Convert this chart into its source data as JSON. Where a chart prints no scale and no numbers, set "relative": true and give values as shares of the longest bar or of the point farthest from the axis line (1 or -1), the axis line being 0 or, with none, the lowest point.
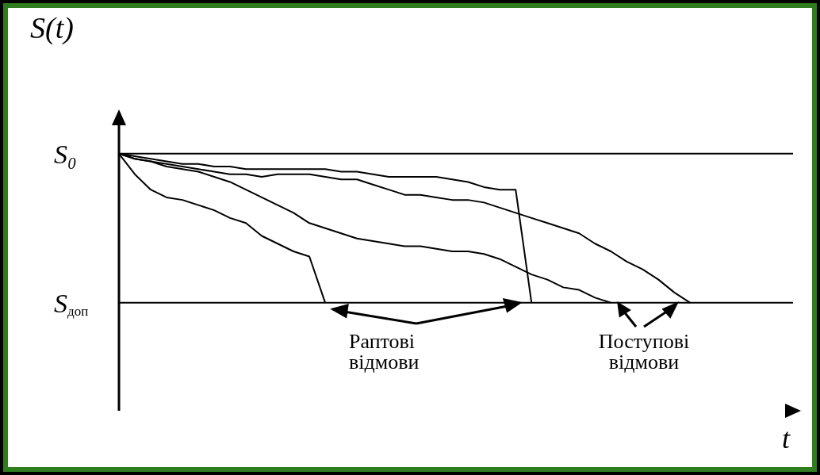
{
  "chart_data": {
    "type": "line",
    "relative": true,
    "xlabel": "t",
    "ylabel": "S(t)",
    "categories": [
      null,
      null,
      null,
      null,
      null,
      null,
      null,
      null,
      null,
      null,
      null,
      null,
      null,
      null,
      null,
      null,
      null,
      null,
      null,
      null,
      null,
      null,
      null,
      null,
      null,
      null,
      null,
      null,
      null,
      null,
      null,
      null,
      null,
      null,
      null,
      null,
      null
    ],
    "series": [
      {
        "color": "#000000",
        "values": [
          1,
          0.92,
          0.86,
          0.83,
          0.82,
          0.8,
          0.78,
          0.75,
          0.73,
          0.68,
          0.65,
          0.62,
          0.6,
          0.42,
          null,
          null,
          null,
          null,
          null,
          null,
          null,
          null,
          null,
          null,
          null,
          null,
          null,
          null,
          null,
          null,
          null,
          null,
          null,
          null,
          null,
          null,
          null
        ]
      },
      {
        "color": "#000000",
        "values": [
          1,
          0.98,
          0.97,
          0.95,
          0.94,
          0.93,
          0.91,
          0.89,
          0.86,
          0.83,
          0.8,
          0.77,
          0.73,
          0.71,
          0.69,
          0.67,
          0.66,
          0.65,
          0.64,
          0.64,
          0.63,
          0.62,
          0.62,
          0.61,
          0.59,
          0.56,
          0.53,
          0.51,
          0.48,
          0.47,
          0.44,
          0.42,
          null,
          null,
          null,
          null,
          null
        ]
      },
      {
        "color": "#000000",
        "values": [
          1,
          0.99,
          0.98,
          0.97,
          0.96,
          0.96,
          0.95,
          0.95,
          0.94,
          0.94,
          0.94,
          0.94,
          0.94,
          0.94,
          0.93,
          0.93,
          0.92,
          0.91,
          0.91,
          0.91,
          0.91,
          0.9,
          0.89,
          0.87,
          0.86,
          0.86,
          0.42,
          null,
          null,
          null,
          null,
          null,
          null,
          null,
          null,
          null,
          null
        ]
      },
      {
        "color": "#000000",
        "values": [
          1,
          0.98,
          0.97,
          0.96,
          0.95,
          0.94,
          0.93,
          0.92,
          0.92,
          0.91,
          0.92,
          0.92,
          0.92,
          0.91,
          0.9,
          0.9,
          0.88,
          0.86,
          0.84,
          0.84,
          0.83,
          0.82,
          0.82,
          0.81,
          0.79,
          0.77,
          0.75,
          0.73,
          0.71,
          0.69,
          0.65,
          0.62,
          0.58,
          0.55,
          0.51,
          0.46,
          0.42
        ]
      }
    ],
    "ref_lines": [
      {
        "axis": "y",
        "value": 1,
        "label": "S₀",
        "color": "#000000"
      },
      {
        "axis": "y",
        "value": 0.42,
        "label": "S$_{доп}$",
        "color": "#000000"
      }
    ],
    "annotations": [
      "Раптові відмови",
      "Поступові відмови"
    ]
  }
}
